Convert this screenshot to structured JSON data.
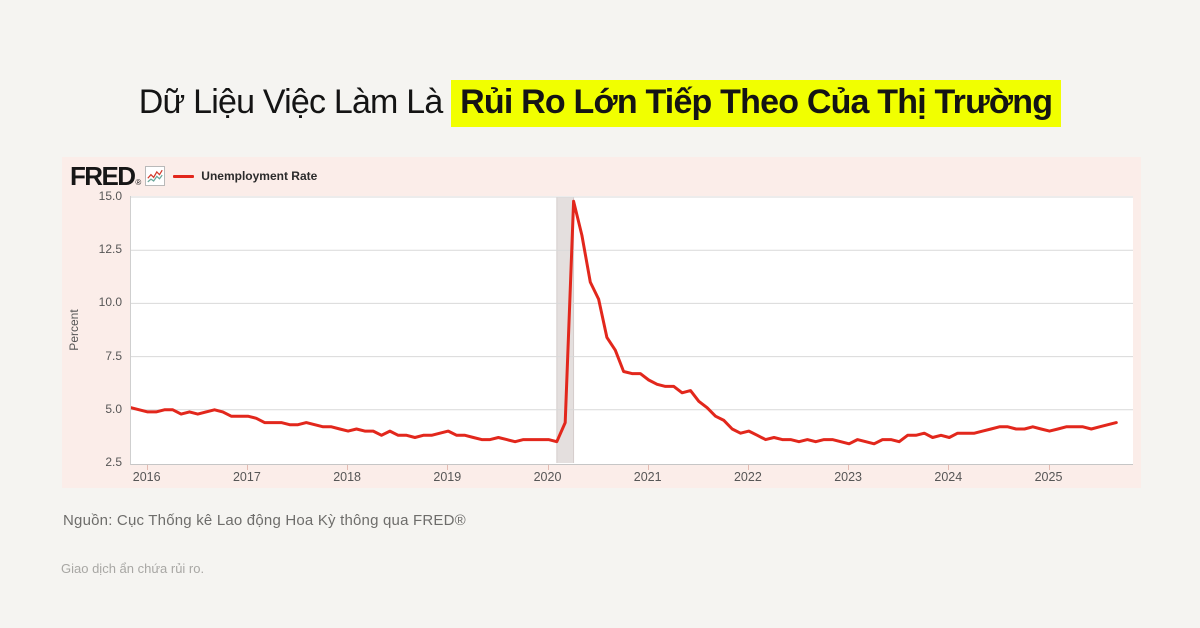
{
  "page": {
    "background_color": "#f5f4f1",
    "title": {
      "prefix": "Dữ Liệu Việc Làm Là ",
      "highlight": "Rủi Ro Lớn Tiếp Theo Của Thị Trường",
      "highlight_color": "#f1ff00",
      "text_color": "#141414"
    },
    "source_line": "Nguồn: Cục Thống kê Lao động Hoa Kỳ thông qua FRED®",
    "disclaimer": "Giao dịch ẩn chứa rủi ro."
  },
  "chart": {
    "brand": "FRED",
    "brand_mark": "®",
    "brand_icon": "fred-sparkline-icon",
    "legend_label": "Unemployment Rate",
    "card_background": "#fbede9",
    "line_color": "#e2271c",
    "gridline_color": "#d9d9d9",
    "recession_band_color": "#e4dfde"
  },
  "chart_data": {
    "type": "line",
    "title": "Unemployment Rate",
    "ylabel": "Percent",
    "xlabel": "",
    "ylim": [
      2.5,
      15.0
    ],
    "y_ticks": [
      15.0,
      12.5,
      10.0,
      7.5,
      5.0,
      2.5
    ],
    "x_tick_years": [
      2016,
      2017,
      2018,
      2019,
      2020,
      2021,
      2022,
      2023,
      2024,
      2025
    ],
    "start_month": "2015-11",
    "axis_end_month": "2025-11",
    "frequency": "monthly",
    "recession_band": {
      "start_month": "2020-02",
      "end_month": "2020-04"
    },
    "legend_position": "top-left",
    "grid": true,
    "series": [
      {
        "name": "Unemployment Rate",
        "values": [
          5.1,
          5.0,
          4.9,
          4.9,
          5.0,
          5.0,
          4.8,
          4.9,
          4.8,
          4.9,
          5.0,
          4.9,
          4.7,
          4.7,
          4.7,
          4.6,
          4.4,
          4.4,
          4.4,
          4.3,
          4.3,
          4.4,
          4.3,
          4.2,
          4.2,
          4.1,
          4.0,
          4.1,
          4.0,
          4.0,
          3.8,
          4.0,
          3.8,
          3.8,
          3.7,
          3.8,
          3.8,
          3.9,
          4.0,
          3.8,
          3.8,
          3.7,
          3.6,
          3.6,
          3.7,
          3.6,
          3.5,
          3.6,
          3.6,
          3.6,
          3.6,
          3.5,
          4.4,
          14.8,
          13.2,
          11.0,
          10.2,
          8.4,
          7.8,
          6.8,
          6.7,
          6.7,
          6.4,
          6.2,
          6.1,
          6.1,
          5.8,
          5.9,
          5.4,
          5.1,
          4.7,
          4.5,
          4.1,
          3.9,
          4.0,
          3.8,
          3.6,
          3.7,
          3.6,
          3.6,
          3.5,
          3.6,
          3.5,
          3.6,
          3.6,
          3.5,
          3.4,
          3.6,
          3.5,
          3.4,
          3.6,
          3.6,
          3.5,
          3.8,
          3.8,
          3.9,
          3.7,
          3.8,
          3.7,
          3.9,
          3.9,
          3.9,
          4.0,
          4.1,
          4.2,
          4.2,
          4.1,
          4.1,
          4.2,
          4.1,
          4.0,
          4.1,
          4.2,
          4.2,
          4.2,
          4.1,
          4.2,
          4.3,
          4.4
        ]
      }
    ]
  }
}
